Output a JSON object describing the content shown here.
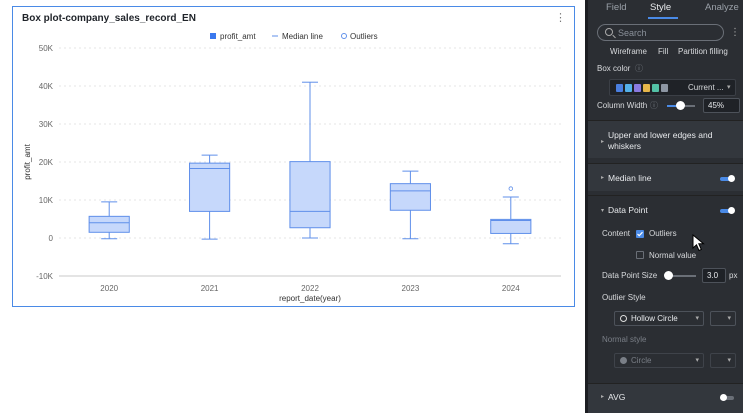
{
  "chart": {
    "title": "Box plot-company_sales_record_EN",
    "more_icon": "⋮",
    "legend": {
      "series": "profit_amt",
      "median": "Median line",
      "outliers": "Outliers"
    },
    "colors": {
      "box_fill": "#c6d8fb",
      "box_stroke": "#5f8fea",
      "accent": "#3a78ee"
    }
  },
  "chart_data": {
    "type": "box",
    "categories": [
      "2020",
      "2021",
      "2022",
      "2023",
      "2024"
    ],
    "xlabel": "report_date(year)",
    "ylabel": "profit_amt",
    "y_ticks": [
      "50K",
      "40K",
      "30K",
      "20K",
      "10K",
      "0",
      "-10K"
    ],
    "ylim": [
      -10000,
      50000
    ],
    "boxes": [
      {
        "category": "2020",
        "min": -200,
        "q1": 1500,
        "median": 4000,
        "q3": 5700,
        "max": 9500,
        "outliers": []
      },
      {
        "category": "2021",
        "min": -300,
        "q1": 7000,
        "median": 18300,
        "q3": 19700,
        "max": 21800,
        "outliers": []
      },
      {
        "category": "2022",
        "min": 0,
        "q1": 2700,
        "median": 7000,
        "q3": 20100,
        "max": 41000,
        "outliers": []
      },
      {
        "category": "2023",
        "min": -200,
        "q1": 7300,
        "median": 12400,
        "q3": 14300,
        "max": 17600,
        "outliers": []
      },
      {
        "category": "2024",
        "min": -1500,
        "q1": 1200,
        "median": 4600,
        "q3": 4900,
        "max": 10800,
        "outliers": [
          13000
        ]
      }
    ],
    "grid": true,
    "legend_position": "top-center"
  },
  "panel": {
    "tabs": [
      "Field",
      "Style",
      "Analyze"
    ],
    "active_tab": "Style",
    "search_placeholder": "Search",
    "kebab": "⋮",
    "sub_tabs": [
      "Wireframe",
      "Fill",
      "Partition filling"
    ],
    "box_color_label": "Box color",
    "box_color_value": "Current ...",
    "swatches": [
      "#4a7fe0",
      "#54b0e8",
      "#8a7ae0",
      "#e6b64a",
      "#53c1a6",
      "#8d96a3"
    ],
    "column_width_label": "Column Width",
    "column_width_value": "45%",
    "column_width_fraction": 0.45,
    "sections": {
      "edges": "Upper and lower edges and whiskers",
      "median": "Median line",
      "data_point": "Data Point",
      "avg": "AVG"
    },
    "content_label": "Content",
    "outliers_label": "Outliers",
    "normal_value_label": "Normal value",
    "data_point_size_label": "Data Point Size",
    "data_point_size_value": "3.0",
    "data_point_size_unit": "px",
    "outlier_style_label": "Outlier Style",
    "outlier_style_value": "Hollow Circle",
    "normal_style_label": "Normal style",
    "normal_style_value": "Circle",
    "info_icon": "ⓘ"
  }
}
